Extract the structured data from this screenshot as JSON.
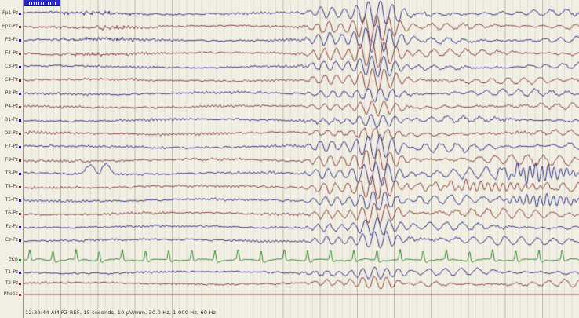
{
  "window": {
    "title": "EEG review display"
  },
  "event_marker": {
    "label": ""
  },
  "status_bar": {
    "text": "12:30:44 AM PZ REF, 15 seconds, 10 µV/mm, 30.0 Hz, 1.000 Hz, 60 Hz"
  },
  "display": {
    "time": "12:30:44 AM",
    "montage": "PZ REF",
    "timebase": "15 seconds",
    "sensitivity": "10 µV/mm",
    "high_filter": "30.0 Hz",
    "low_filter": "1.000 Hz",
    "notch": "60 Hz"
  },
  "colors": {
    "background": "#f1eee3",
    "left_trace": "#1b1b7e",
    "right_trace": "#7a2a26",
    "ekg_trace": "#1e7d1e",
    "photic_trace": "#8a3a30",
    "marker_blue": "#2b2bc4"
  },
  "channels": [
    {
      "label": "Fp1-Pz",
      "color": "#1b1b7e",
      "baseline": 17,
      "group": "frontal"
    },
    {
      "label": "Fp2-Pz",
      "color": "#7a2a26",
      "baseline": 34,
      "group": "frontal"
    },
    {
      "label": "F3-Pz",
      "color": "#1b1b7e",
      "baseline": 51,
      "group": "frontal"
    },
    {
      "label": "F4-Pz",
      "color": "#7a2a26",
      "baseline": 68,
      "group": "frontal"
    },
    {
      "label": "C3-Pz",
      "color": "#1b1b7e",
      "baseline": 85,
      "group": "central"
    },
    {
      "label": "C4-Pz",
      "color": "#7a2a26",
      "baseline": 102,
      "group": "central"
    },
    {
      "label": "P3-Pz",
      "color": "#1b1b7e",
      "baseline": 119,
      "group": "parietal"
    },
    {
      "label": "P4-Pz",
      "color": "#7a2a26",
      "baseline": 136,
      "group": "parietal"
    },
    {
      "label": "O1-Pz",
      "color": "#1b1b7e",
      "baseline": 153,
      "group": "occipital"
    },
    {
      "label": "O2-Pz",
      "color": "#7a2a26",
      "baseline": 170,
      "group": "occipital"
    },
    {
      "label": "F7-Pz",
      "color": "#1b1b7e",
      "baseline": 187,
      "group": "temporal_ant"
    },
    {
      "label": "F8-Pz",
      "color": "#7a2a26",
      "baseline": 204,
      "group": "temporal_ant"
    },
    {
      "label": "T3-Pz",
      "color": "#1b1b7e",
      "baseline": 221,
      "group": "temporal_ant"
    },
    {
      "label": "T4-Pz",
      "color": "#7a2a26",
      "baseline": 238,
      "group": "temporal_ant"
    },
    {
      "label": "T5-Pz",
      "color": "#1b1b7e",
      "baseline": 255,
      "group": "temporal_post"
    },
    {
      "label": "T6-Pz",
      "color": "#7a2a26",
      "baseline": 272,
      "group": "temporal_post"
    },
    {
      "label": "Fz-Pz",
      "color": "#1b1b7e",
      "baseline": 289,
      "group": "midline"
    },
    {
      "label": "Cz-Pz",
      "color": "#1b1b7e",
      "baseline": 306,
      "group": "midline"
    },
    {
      "label": "EKG",
      "color": "#1e7d1e",
      "baseline": 331,
      "group": "ekg"
    },
    {
      "label": "T1-Pz",
      "color": "#1b1b7e",
      "baseline": 347,
      "group": "aux"
    },
    {
      "label": "T2-Pz",
      "color": "#7a2a26",
      "baseline": 361,
      "group": "aux"
    },
    {
      "label": "Photic",
      "color": "#8a3a30",
      "baseline": 375,
      "group": "photic"
    }
  ],
  "signal_profiles": {
    "frontal": {
      "fast": 2.0,
      "alpha": 0.9,
      "burst": 17,
      "post": 4.5
    },
    "central": {
      "fast": 1.9,
      "alpha": 0.9,
      "burst": 14,
      "post": 4.0
    },
    "parietal": {
      "fast": 1.8,
      "alpha": 1.0,
      "burst": 9,
      "post": 4.0
    },
    "occipital": {
      "fast": 1.8,
      "alpha": 1.4,
      "burst": 8,
      "post": 3.5
    },
    "temporal_ant": {
      "fast": 2.3,
      "alpha": 0.8,
      "burst": 15,
      "post": 7.0
    },
    "temporal_post": {
      "fast": 2.0,
      "alpha": 1.0,
      "burst": 12,
      "post": 6.0
    },
    "midline": {
      "fast": 1.8,
      "alpha": 0.9,
      "burst": 11,
      "post": 5.5
    },
    "aux": {
      "fast": 1.8,
      "alpha": 0.7,
      "burst": 8,
      "post": 5.0
    },
    "ekg": {
      "fast": 0.8,
      "alpha": 0,
      "burst": 0,
      "post": 0
    },
    "photic": {
      "fast": 0,
      "alpha": 0,
      "burst": 0,
      "post": 0
    }
  }
}
